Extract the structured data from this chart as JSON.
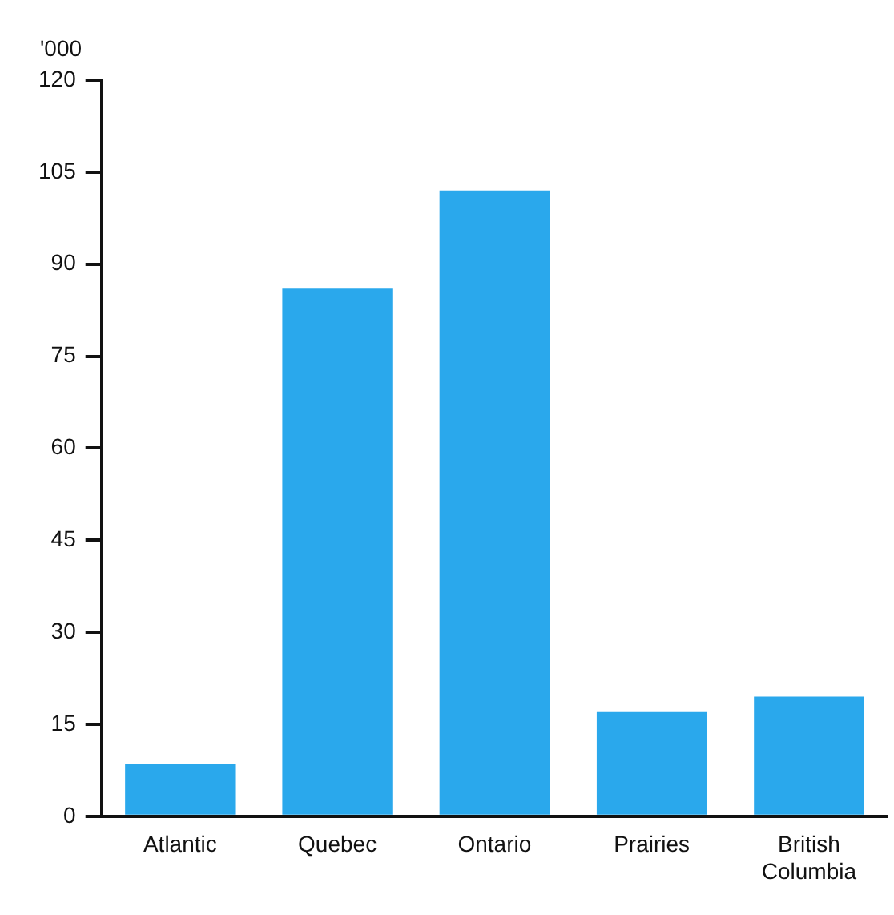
{
  "chart_data": {
    "type": "bar",
    "ylabel": "'000",
    "categories": [
      "Atlantic",
      "Quebec",
      "Ontario",
      "Prairies",
      "British Columbia"
    ],
    "values": [
      8.5,
      86,
      102,
      17,
      19.5
    ],
    "color": "#2aa8ec",
    "ylim": [
      0,
      120
    ],
    "yticks": [
      0,
      15,
      30,
      45,
      60,
      75,
      90,
      105,
      120
    ],
    "grid": false,
    "legend": false
  }
}
